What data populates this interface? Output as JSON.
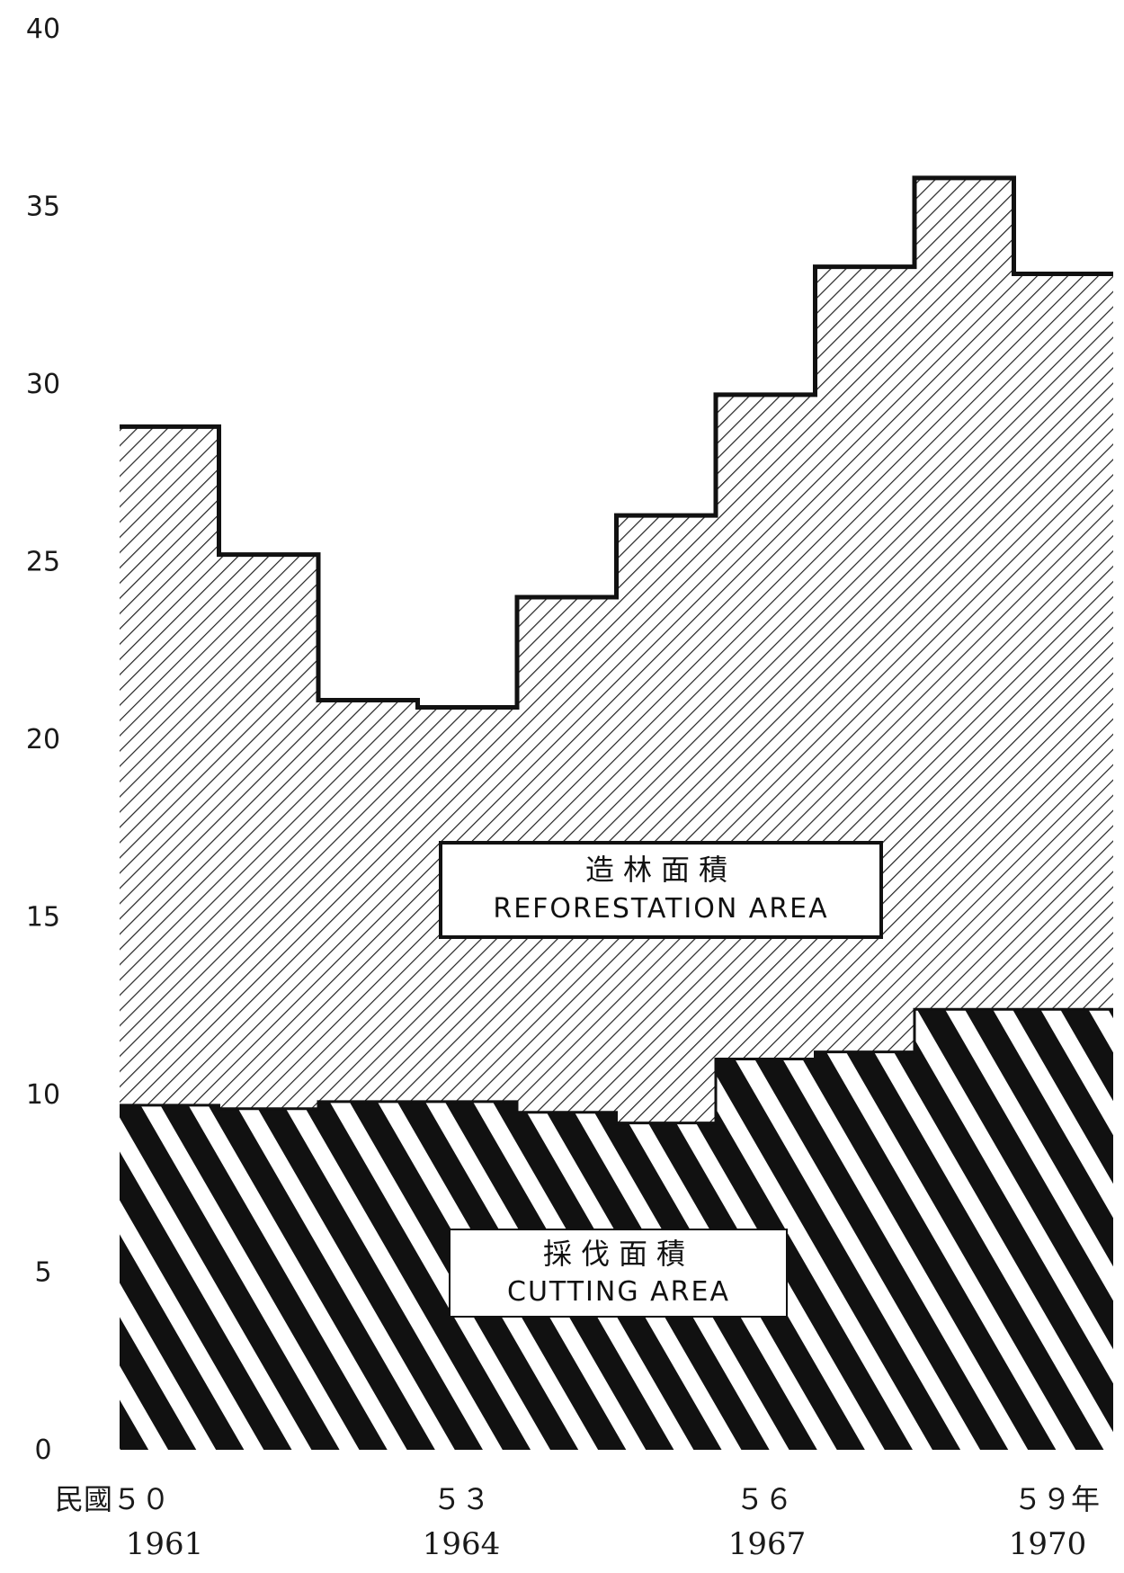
{
  "chart_data": {
    "type": "area",
    "title": "",
    "xlabel": "",
    "ylabel": "",
    "ylim": [
      0,
      40
    ],
    "yticks": [
      0,
      5,
      10,
      15,
      20,
      25,
      30,
      35,
      40
    ],
    "grid": false,
    "categories": [
      "1961",
      "1962",
      "1963",
      "1964",
      "1965",
      "1966",
      "1967",
      "1968",
      "1969",
      "1970"
    ],
    "x_tick_labels": [
      {
        "roc": "民國５０",
        "year": "1961"
      },
      {
        "roc": "５３",
        "year": "1964"
      },
      {
        "roc": "５６",
        "year": "1967"
      },
      {
        "roc": "５９年",
        "year": "1970"
      }
    ],
    "x_tick_years": [
      "1961",
      "1964",
      "1967",
      "1970"
    ],
    "series": [
      {
        "name_zh": "採伐面積",
        "name": "CUTTING AREA",
        "values": [
          9.7,
          9.6,
          9.8,
          9.8,
          9.5,
          9.2,
          11.0,
          11.2,
          12.4,
          12.4
        ]
      },
      {
        "name_zh": "造林面積",
        "name": "REFORESTATION AREA",
        "values": [
          28.8,
          25.2,
          21.1,
          20.9,
          24.0,
          26.3,
          29.7,
          33.3,
          35.8,
          33.1
        ]
      }
    ],
    "colors": {
      "ink": "#111111",
      "paper": "#ffffff"
    }
  }
}
